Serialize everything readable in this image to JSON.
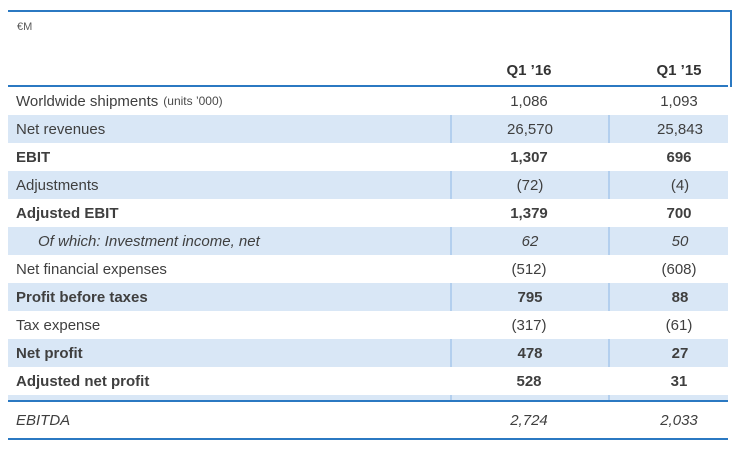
{
  "meta": {
    "currency_label": "€M"
  },
  "colors": {
    "accent_rule_blue": "#2B79C2",
    "row_highlight_blue": "#D9E7F6",
    "column_separator_blue": "#B3CFEE",
    "text": "#3F3F3F"
  },
  "table": {
    "columns": {
      "col1": "Q1 ’16",
      "col2": "Q1 ’15"
    },
    "rows": [
      {
        "label": "Worldwide shipments",
        "label_note": "(units ’000)",
        "q1_16": "1,086",
        "q1_15": "1,093"
      },
      {
        "label": "Net revenues",
        "q1_16": "26,570",
        "q1_15": "25,843"
      },
      {
        "label": "EBIT",
        "q1_16": "1,307",
        "q1_15": "696"
      },
      {
        "label": "Adjustments",
        "q1_16": "(72)",
        "q1_15": "(4)"
      },
      {
        "label": "Adjusted EBIT",
        "q1_16": "1,379",
        "q1_15": "700"
      },
      {
        "label": "Of which: Investment income, net",
        "q1_16": "62",
        "q1_15": "50"
      },
      {
        "label": "Net financial expenses",
        "q1_16": "(512)",
        "q1_15": "(608)"
      },
      {
        "label": "Profit before taxes",
        "q1_16": "795",
        "q1_15": "88"
      },
      {
        "label": "Tax expense",
        "q1_16": "(317)",
        "q1_15": "(61)"
      },
      {
        "label": "Net profit",
        "q1_16": "478",
        "q1_15": "27"
      },
      {
        "label": "Adjusted net profit",
        "q1_16": "528",
        "q1_15": "31"
      }
    ],
    "footer": {
      "label": "EBITDA",
      "q1_16": "2,724",
      "q1_15": "2,033"
    }
  }
}
